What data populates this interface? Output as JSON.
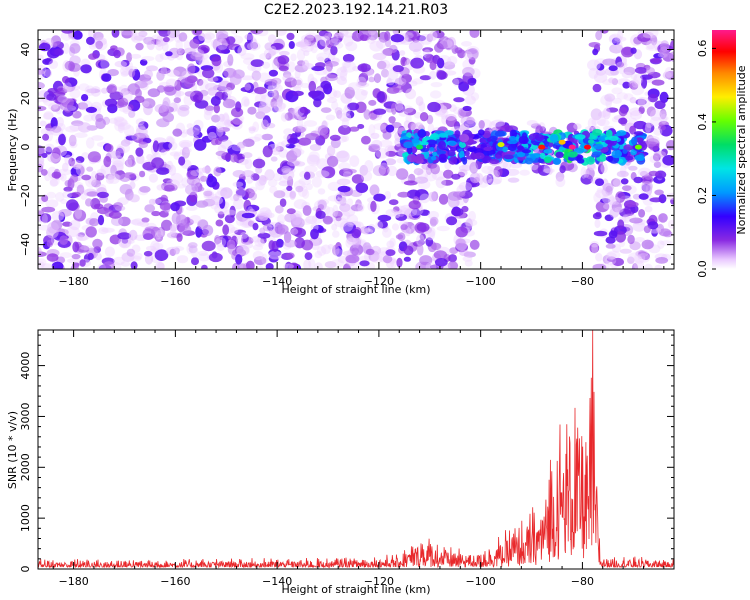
{
  "figure": {
    "title": "C2E2.2023.192.14.21.R03"
  },
  "chart_data": [
    {
      "type": "heatmap",
      "xlabel": "Height of straight line (km)",
      "ylabel": "Frequency (Hz)",
      "xlim": [
        -187,
        -62
      ],
      "ylim": [
        -50,
        48
      ],
      "x_ticks": [
        -180,
        -160,
        -140,
        -120,
        -100,
        -80
      ],
      "y_ticks": [
        -40,
        -20,
        0,
        20,
        40
      ],
      "colorbar": {
        "label": "Normalized spectral amplitude",
        "range": [
          0.0,
          0.65
        ],
        "ticks": [
          0.0,
          0.2,
          0.4,
          0.6
        ],
        "colormap": "rainbow (white → violet → blue → cyan → green → yellow → red → magenta)"
      },
      "features": [
        {
          "name": "noise background",
          "x_range": [
            -187,
            -62
          ],
          "y_range": [
            -50,
            48
          ],
          "amplitude": [
            0.0,
            0.12
          ],
          "note": "violet speckle"
        },
        {
          "name": "empty region",
          "x_range": [
            -101,
            -78
          ],
          "y_range": [
            10,
            48
          ],
          "amplitude": 0.0
        },
        {
          "name": "empty region",
          "x_range": [
            -101,
            -78
          ],
          "y_range": [
            -50,
            -15
          ],
          "amplitude": 0.0
        },
        {
          "name": "signal band",
          "x_range": [
            -115,
            -68
          ],
          "y_center": 0,
          "amplitude_peak": 0.65,
          "peak_x": -82
        }
      ]
    },
    {
      "type": "line",
      "xlabel": "Height of straight line (km)",
      "ylabel": "SNR (10 * v/v)",
      "xlim": [
        -187,
        -62
      ],
      "ylim": [
        0,
        4700
      ],
      "x_ticks": [
        -180,
        -160,
        -140,
        -120,
        -100,
        -80
      ],
      "y_ticks": [
        0,
        1000,
        2000,
        3000,
        4000
      ],
      "series": [
        {
          "color": "#e8282b",
          "envelope": {
            "x": [
              -187,
              -130,
              -116,
              -112,
              -110,
              -105,
              -100,
              -96,
              -94,
              -92,
              -90,
              -88,
              -86,
              -84,
              -82,
              -80,
              -79,
              -78,
              -77.5,
              -77,
              -76.5,
              -70,
              -62
            ],
            "y": [
              200,
              220,
              300,
              700,
              650,
              400,
              420,
              700,
              900,
              1000,
              1200,
              1600,
              2700,
              3300,
              3850,
              3600,
              2900,
              4700,
              2700,
              2000,
              300,
              250,
              200
            ]
          },
          "peak": {
            "x": -78,
            "y": 4700
          }
        }
      ]
    }
  ]
}
